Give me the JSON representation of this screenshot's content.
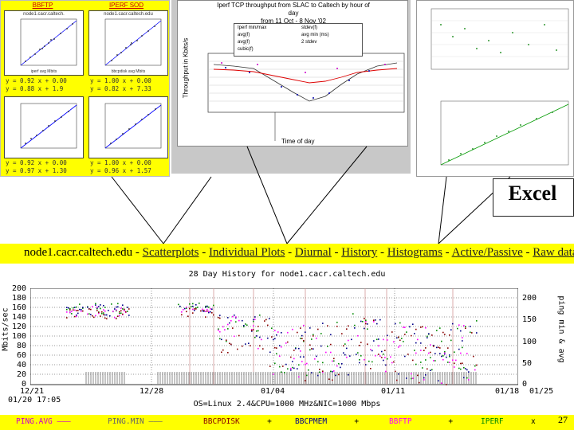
{
  "top_left": {
    "tab_labels": [
      "BBFTP",
      "IPERF SOD"
    ],
    "subplots": [
      {
        "title": "node1.cacr.caltech.",
        "xlabel": "iperf avg Mbits"
      },
      {
        "title": "node1.cacr.caltech.edu",
        "xlabel": "bbcpdisk avg Mbits"
      },
      {
        "title": "",
        "xlabel": ""
      },
      {
        "title": "",
        "xlabel": ""
      }
    ],
    "equations": [
      [
        "y = 0.92 x + 0.00",
        "y = 0.88 x + 1.9"
      ],
      [
        "y = 1.00 x + 0.00",
        "y = 0.82 x + 7.33"
      ],
      [
        "y = 0.92 x + 0.00",
        "y = 0.97 x + 1.30"
      ],
      [
        "y = 1.00 x + 0.00",
        "y = 0.96 x + 1.57"
      ]
    ]
  },
  "diurnal": {
    "title_lines": [
      "Iperf TCP throughput from SLAC to Caltech by hour of",
      "day",
      "from 11 Oct - 8 Nov '02"
    ],
    "ylabel": "Throughput in Kbits/s",
    "xlabel": "Time of day",
    "legend": [
      "Iperf min/max",
      "avg(f)",
      "avg(f)",
      "cubic(f)",
      "stdev(f)",
      "avg min (ms)",
      "2 stdev"
    ]
  },
  "excel": {
    "callout": "Excel"
  },
  "nav": {
    "host": "node1.cacr.caltech.edu",
    "links": [
      "Scatterplots",
      "Individual Plots",
      "Diurnal",
      "History",
      "Histograms",
      "Active/Passive",
      "Raw data"
    ]
  },
  "history": {
    "title": "28 Day History for node1.cacr.caltech.edu",
    "ylabel_left": "Mbits/sec",
    "ylabel_right": "ping min & avg",
    "os_line": "OS=Linux 2.4&CPU=1000 MHz&NIC=1000 Mbps",
    "x_labels": [
      "12/21",
      "12/28",
      "01/04",
      "01/11",
      "01/18",
      "01/25"
    ],
    "x_sub": [
      "01/20 17:05"
    ],
    "y_left": [
      "200",
      "180",
      "160",
      "140",
      "120",
      "100",
      "80",
      "60",
      "40",
      "20",
      "0"
    ],
    "y_right": [
      "200",
      "150",
      "100",
      "50",
      "0"
    ],
    "legend": [
      {
        "label": "PING.AVG",
        "sym": "———",
        "color": "#cc00cc"
      },
      {
        "label": "PING.MIN",
        "sym": "———",
        "color": "#888888"
      },
      {
        "label": "BBCPDISK",
        "sym": "+",
        "color": "#880000"
      },
      {
        "label": "BBCPMEM",
        "sym": "+",
        "color": "#000088"
      },
      {
        "label": "BBFTP",
        "sym": "+",
        "color": "#ff00ff"
      },
      {
        "label": "IPERF",
        "sym": "x",
        "color": "#008800"
      }
    ]
  },
  "slide": {
    "number": "27"
  }
}
